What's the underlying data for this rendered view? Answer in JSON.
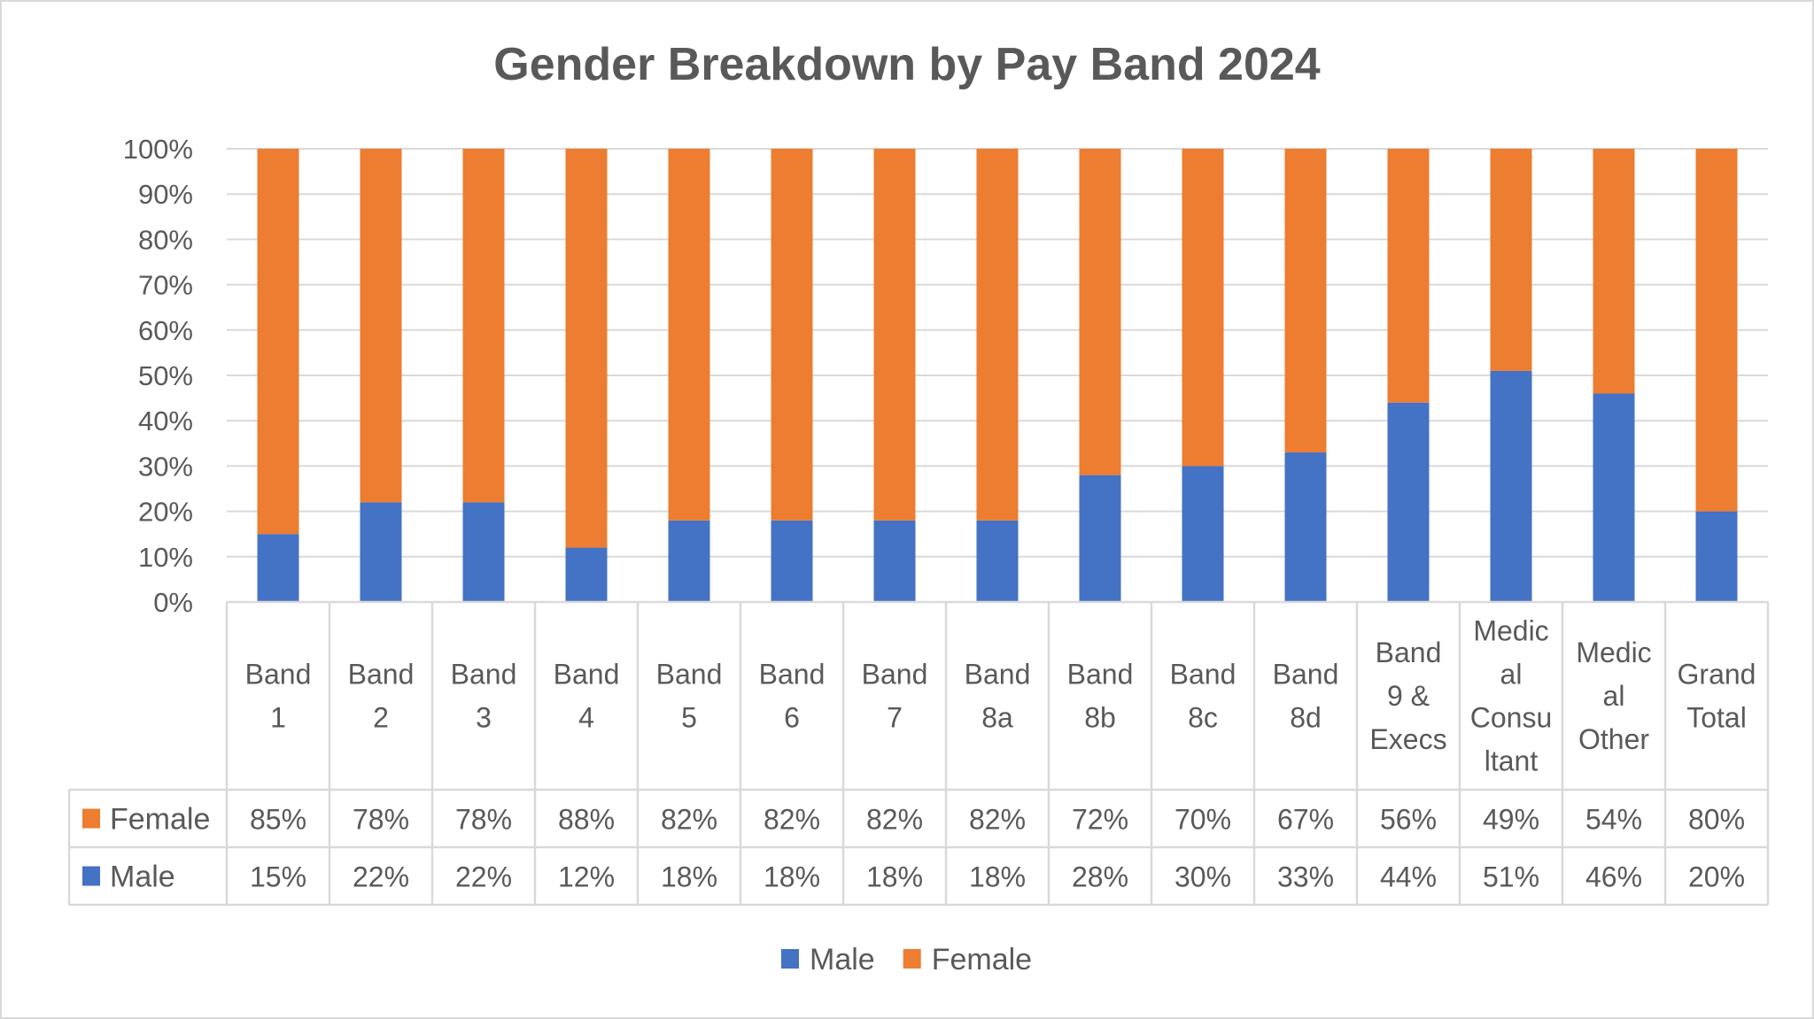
{
  "chart_data": {
    "type": "bar",
    "stacked": "percent",
    "title": "Gender Breakdown by Pay Band 2024",
    "xlabel": "",
    "ylabel": "",
    "ylim": [
      0,
      100
    ],
    "yticks": [
      "0%",
      "10%",
      "20%",
      "30%",
      "40%",
      "50%",
      "60%",
      "70%",
      "80%",
      "90%",
      "100%"
    ],
    "grid": true,
    "legend_position": "bottom",
    "data_table": true,
    "categories": [
      [
        "Band",
        "1"
      ],
      [
        "Band",
        "2"
      ],
      [
        "Band",
        "3"
      ],
      [
        "Band",
        "4"
      ],
      [
        "Band",
        "5"
      ],
      [
        "Band",
        "6"
      ],
      [
        "Band",
        "7"
      ],
      [
        "Band",
        "8a"
      ],
      [
        "Band",
        "8b"
      ],
      [
        "Band",
        "8c"
      ],
      [
        "Band",
        "8d"
      ],
      [
        "Band",
        "9 &",
        "Execs"
      ],
      [
        "Medic",
        "al",
        "Consu",
        "ltant"
      ],
      [
        "Medic",
        "al",
        "Other"
      ],
      [
        "Grand",
        "Total"
      ]
    ],
    "series": [
      {
        "name": "Male",
        "color": "#4472c4",
        "values": [
          15,
          22,
          22,
          12,
          18,
          18,
          18,
          18,
          28,
          30,
          33,
          44,
          51,
          46,
          20
        ],
        "labels": [
          "15%",
          "22%",
          "22%",
          "12%",
          "18%",
          "18%",
          "18%",
          "18%",
          "28%",
          "30%",
          "33%",
          "44%",
          "51%",
          "46%",
          "20%"
        ]
      },
      {
        "name": "Female",
        "color": "#ed7d31",
        "values": [
          85,
          78,
          78,
          88,
          82,
          82,
          82,
          82,
          72,
          70,
          67,
          56,
          49,
          54,
          80
        ],
        "labels": [
          "85%",
          "78%",
          "78%",
          "88%",
          "82%",
          "82%",
          "82%",
          "82%",
          "72%",
          "70%",
          "67%",
          "56%",
          "49%",
          "54%",
          "80%"
        ]
      }
    ],
    "table_row_order": [
      "Female",
      "Male"
    ],
    "legend_order": [
      "Male",
      "Female"
    ]
  }
}
